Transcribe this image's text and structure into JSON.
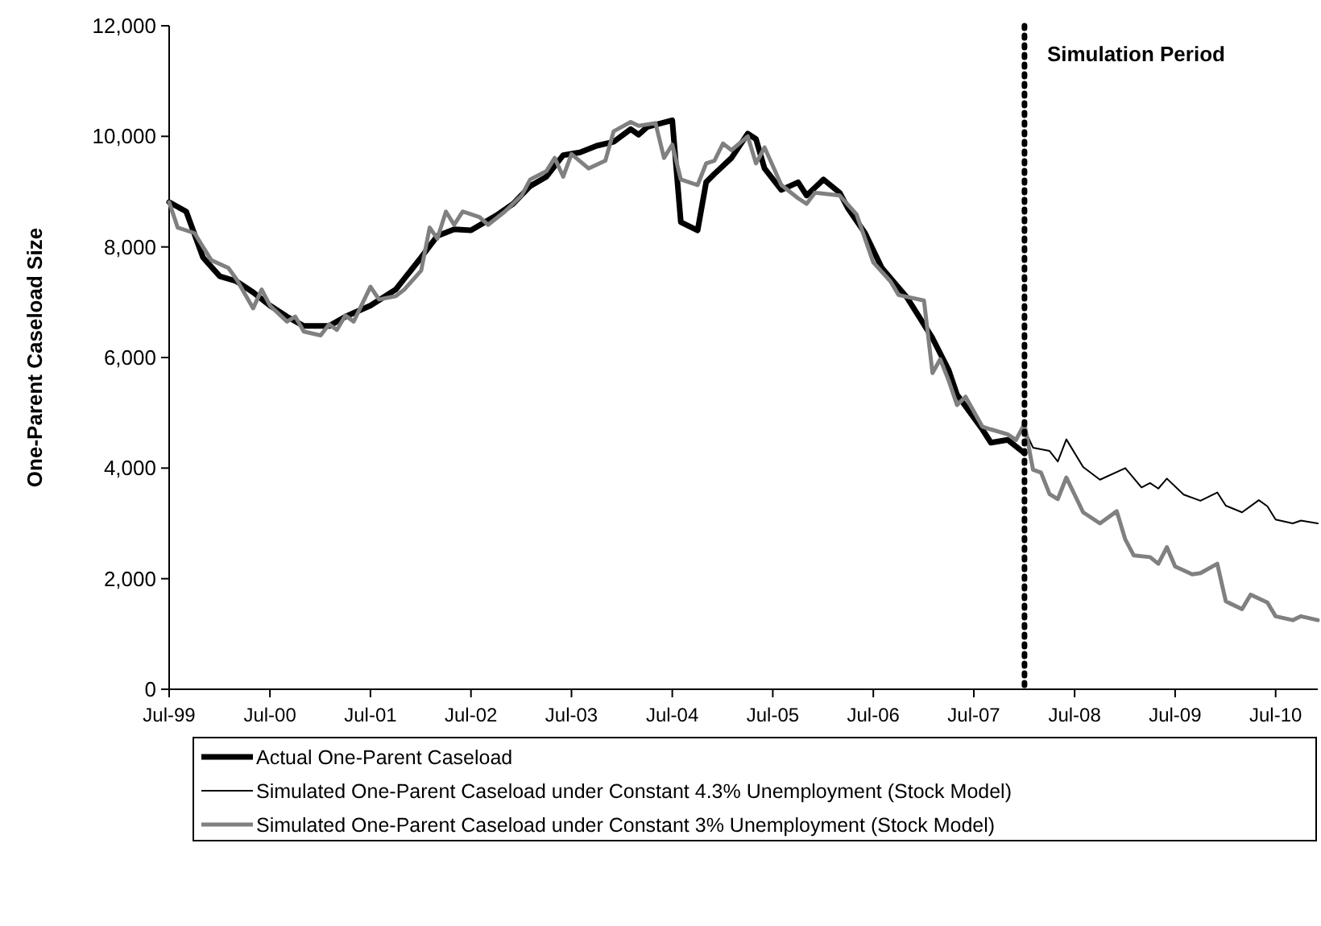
{
  "chart_data": {
    "type": "line",
    "ylabel": "One-Parent Caseload Size",
    "xlim": [
      "1999-07",
      "2010-12"
    ],
    "ylim": [
      0,
      12000
    ],
    "xticks": [
      {
        "value": "1999-07",
        "label": "Jul-99"
      },
      {
        "value": "2000-07",
        "label": "Jul-00"
      },
      {
        "value": "2001-07",
        "label": "Jul-01"
      },
      {
        "value": "2002-07",
        "label": "Jul-02"
      },
      {
        "value": "2003-07",
        "label": "Jul-03"
      },
      {
        "value": "2004-07",
        "label": "Jul-04"
      },
      {
        "value": "2005-07",
        "label": "Jul-05"
      },
      {
        "value": "2006-07",
        "label": "Jul-06"
      },
      {
        "value": "2007-07",
        "label": "Jul-07"
      },
      {
        "value": "2008-07",
        "label": "Jul-08"
      },
      {
        "value": "2009-07",
        "label": "Jul-09"
      },
      {
        "value": "2010-07",
        "label": "Jul-10"
      }
    ],
    "yticks": [
      0,
      {
        "value": 2000,
        "label": "2,000"
      },
      {
        "value": 4000,
        "label": "4,000"
      },
      {
        "value": 6000,
        "label": "6,000"
      },
      {
        "value": 8000,
        "label": "8,000"
      },
      {
        "value": 10000,
        "label": "10,000"
      },
      {
        "value": 12000,
        "label": "12,000"
      }
    ],
    "grid": false,
    "legend": "bottom",
    "marker": "none",
    "line_style": "solid",
    "ref_lines": [
      {
        "axis": "x",
        "value": "2008-01",
        "label": "Simulation Period",
        "line_style": "dotted",
        "color": "#000000"
      }
    ],
    "series": [
      {
        "name": "Actual One-Parent Caseload",
        "color": "#000000",
        "x": [
          "1999-07",
          "1999-09",
          "1999-11",
          "2000-01",
          "2000-03",
          "2000-05",
          "2000-07",
          "2000-09",
          "2000-11",
          "2001-02",
          "2001-04",
          "2001-07",
          "2001-10",
          "2002-01",
          "2002-03",
          "2002-05",
          "2002-07",
          "2002-10",
          "2002-12",
          "2003-02",
          "2003-04",
          "2003-06",
          "2003-08",
          "2003-10",
          "2003-12",
          "2004-02",
          "2004-03",
          "2004-04",
          "2004-07",
          "2004-08",
          "2004-10",
          "2004-11",
          "2004-12",
          "2005-02",
          "2005-04",
          "2005-05",
          "2005-06",
          "2005-08",
          "2005-10",
          "2005-11",
          "2006-01",
          "2006-03",
          "2006-04",
          "2006-06",
          "2006-08",
          "2006-11",
          "2007-02",
          "2007-04",
          "2007-05",
          "2007-08",
          "2007-09",
          "2007-11",
          "2008-01"
        ],
        "values": [
          8810,
          8640,
          7810,
          7470,
          7380,
          7180,
          6940,
          6740,
          6570,
          6570,
          6740,
          6940,
          7230,
          7810,
          8200,
          8320,
          8300,
          8570,
          8780,
          9100,
          9270,
          9660,
          9710,
          9830,
          9900,
          10130,
          10030,
          10170,
          10290,
          8450,
          8300,
          9170,
          9320,
          9610,
          10050,
          9950,
          9420,
          9030,
          9170,
          8930,
          9220,
          8980,
          8690,
          8250,
          7620,
          7080,
          6350,
          5770,
          5330,
          4700,
          4460,
          4510,
          4270
        ]
      },
      {
        "name": "Simulated One-Parent Caseload under Constant 4.3% Unemployment (Stock Model)",
        "color": "#000000",
        "x": [
          "2008-01",
          "2008-02",
          "2008-04",
          "2008-05",
          "2008-06",
          "2008-08",
          "2008-10",
          "2009-01",
          "2009-03",
          "2009-04",
          "2009-05",
          "2009-06",
          "2009-08",
          "2009-10",
          "2009-12",
          "2010-01",
          "2010-03",
          "2010-05",
          "2010-06",
          "2010-07",
          "2010-09",
          "2010-10",
          "2010-12"
        ],
        "values": [
          4700,
          4370,
          4310,
          4120,
          4520,
          4020,
          3790,
          4000,
          3650,
          3730,
          3630,
          3810,
          3520,
          3410,
          3560,
          3320,
          3200,
          3420,
          3310,
          3070,
          3000,
          3050,
          3000
        ]
      },
      {
        "name": "Simulated One-Parent Caseload under Constant 3% Unemployment (Stock Model)",
        "color": "#808080",
        "x": [
          "1999-07",
          "1999-08",
          "1999-10",
          "1999-12",
          "2000-02",
          "2000-03",
          "2000-05",
          "2000-06",
          "2000-07",
          "2000-09",
          "2000-10",
          "2000-11",
          "2001-01",
          "2001-02",
          "2001-03",
          "2001-04",
          "2001-05",
          "2001-07",
          "2001-08",
          "2001-10",
          "2001-11",
          "2002-01",
          "2002-02",
          "2002-03",
          "2002-04",
          "2002-05",
          "2002-06",
          "2002-08",
          "2002-09",
          "2002-11",
          "2003-01",
          "2003-02",
          "2003-04",
          "2003-05",
          "2003-06",
          "2003-07",
          "2003-09",
          "2003-11",
          "2003-12",
          "2004-02",
          "2004-03",
          "2004-05",
          "2004-06",
          "2004-07",
          "2004-08",
          "2004-10",
          "2004-11",
          "2004-12",
          "2005-01",
          "2005-02",
          "2005-04",
          "2005-05",
          "2005-06",
          "2005-08",
          "2005-10",
          "2005-11",
          "2005-12",
          "2006-03",
          "2006-05",
          "2006-07",
          "2006-09",
          "2006-10",
          "2007-01",
          "2007-02",
          "2007-03",
          "2007-04",
          "2007-05",
          "2007-06",
          "2007-08",
          "2007-09",
          "2007-11",
          "2007-12",
          "2008-01",
          "2008-02",
          "2008-03",
          "2008-04",
          "2008-05",
          "2008-06",
          "2008-08",
          "2008-10",
          "2008-12",
          "2009-01",
          "2009-02",
          "2009-04",
          "2009-05",
          "2009-06",
          "2009-07",
          "2009-09",
          "2009-10",
          "2009-12",
          "2010-01",
          "2010-03",
          "2010-04",
          "2010-06",
          "2010-07",
          "2010-09",
          "2010-10",
          "2010-12"
        ],
        "values": [
          8810,
          8350,
          8250,
          7760,
          7620,
          7420,
          6890,
          7230,
          6940,
          6650,
          6740,
          6470,
          6400,
          6600,
          6500,
          6760,
          6650,
          7280,
          7050,
          7110,
          7230,
          7570,
          8350,
          8150,
          8640,
          8400,
          8640,
          8540,
          8400,
          8640,
          8930,
          9220,
          9370,
          9610,
          9270,
          9680,
          9420,
          9560,
          10090,
          10260,
          10190,
          10240,
          9610,
          9850,
          9220,
          9120,
          9510,
          9560,
          9870,
          9750,
          10000,
          9510,
          9800,
          9120,
          8880,
          8780,
          8980,
          8930,
          8590,
          7720,
          7380,
          7130,
          7030,
          5720,
          5970,
          5580,
          5140,
          5290,
          4750,
          4700,
          4610,
          4510,
          4800,
          3970,
          3920,
          3530,
          3440,
          3830,
          3200,
          3000,
          3220,
          2710,
          2420,
          2390,
          2270,
          2570,
          2220,
          2080,
          2100,
          2270,
          1590,
          1450,
          1710,
          1570,
          1320,
          1250,
          1320,
          1250
        ]
      }
    ]
  }
}
